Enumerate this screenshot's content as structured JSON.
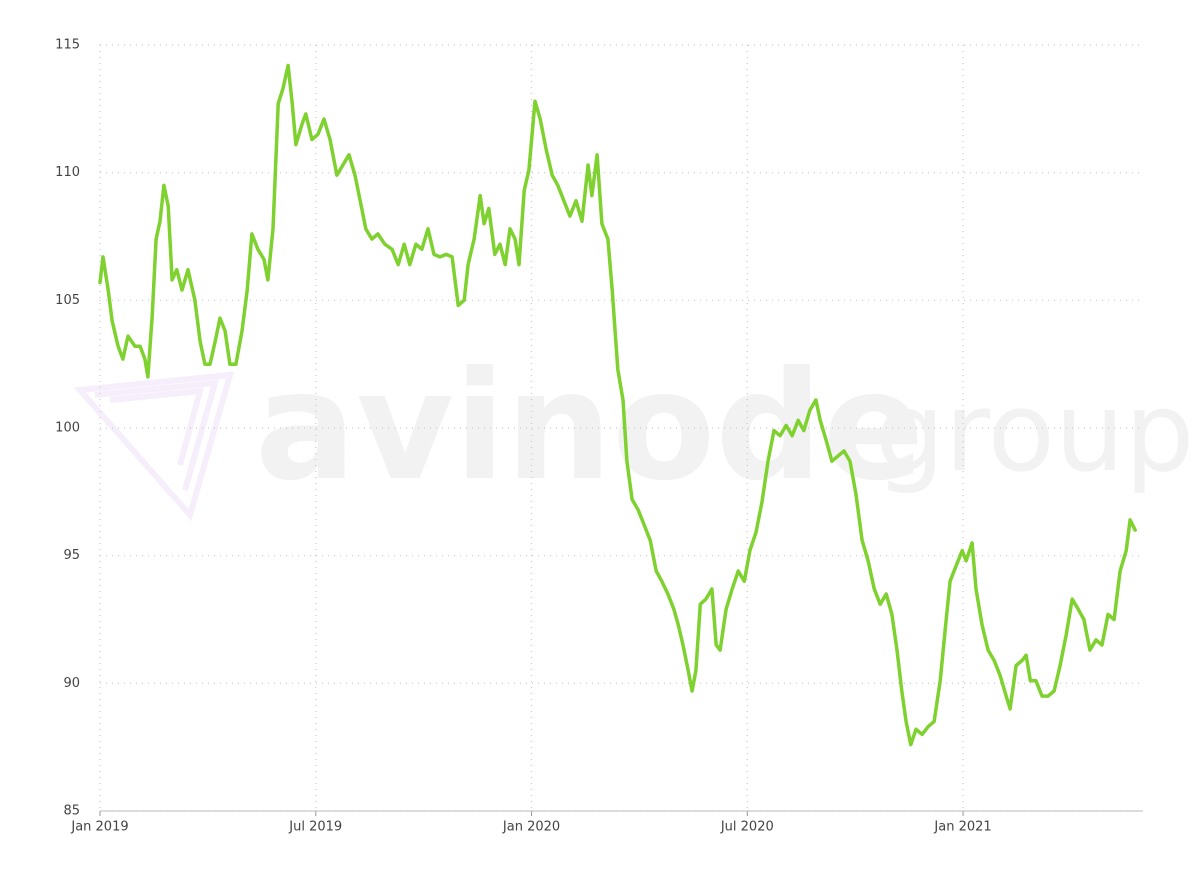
{
  "chart_data": {
    "type": "line",
    "watermark": {
      "brand": "avinode",
      "suffix": "group"
    },
    "xlim": [
      2019,
      2021.417
    ],
    "ylim": [
      85,
      115
    ],
    "xticks": [
      {
        "value": 2019,
        "label": "Jan 2019"
      },
      {
        "value": 2019.5,
        "label": "Jul 2019"
      },
      {
        "value": 2020,
        "label": "Jan 2020"
      },
      {
        "value": 2020.5,
        "label": "Jul 2020"
      },
      {
        "value": 2021,
        "label": "Jan 2021"
      }
    ],
    "yticks": [
      85,
      90,
      95,
      100,
      105,
      110,
      115
    ],
    "grid": true,
    "x": [
      2019.0,
      2019.007,
      2019.019,
      2019.028,
      2019.042,
      2019.053,
      2019.065,
      2019.081,
      2019.093,
      2019.104,
      2019.111,
      2019.121,
      2019.13,
      2019.139,
      2019.148,
      2019.158,
      2019.167,
      2019.178,
      2019.19,
      2019.204,
      2019.22,
      2019.232,
      2019.243,
      2019.255,
      2019.267,
      2019.278,
      2019.29,
      2019.301,
      2019.315,
      2019.329,
      2019.341,
      2019.352,
      2019.366,
      2019.38,
      2019.389,
      2019.401,
      2019.413,
      2019.424,
      2019.436,
      2019.445,
      2019.454,
      2019.468,
      2019.477,
      2019.491,
      2019.505,
      2019.519,
      2019.533,
      2019.549,
      2019.563,
      2019.577,
      2019.591,
      2019.603,
      2019.616,
      2019.63,
      2019.644,
      2019.66,
      2019.677,
      2019.691,
      2019.705,
      2019.718,
      2019.732,
      2019.746,
      2019.76,
      2019.774,
      2019.788,
      2019.802,
      2019.816,
      2019.83,
      2019.844,
      2019.853,
      2019.867,
      2019.881,
      2019.89,
      2019.901,
      2019.915,
      2019.927,
      2019.939,
      2019.95,
      2019.962,
      2019.971,
      2019.983,
      2019.994,
      2020.008,
      2020.02,
      2020.034,
      2020.048,
      2020.061,
      2020.075,
      2020.089,
      2020.103,
      2020.117,
      2020.131,
      2020.14,
      2020.152,
      2020.163,
      2020.177,
      2020.187,
      2020.2,
      2020.212,
      2020.221,
      2020.233,
      2020.247,
      2020.261,
      2020.275,
      2020.289,
      2020.302,
      2020.316,
      2020.33,
      2020.34,
      2020.351,
      2020.363,
      2020.372,
      2020.381,
      2020.391,
      2020.404,
      2020.418,
      2020.428,
      2020.437,
      2020.451,
      2020.465,
      2020.479,
      2020.493,
      2020.506,
      2020.52,
      2020.534,
      2020.548,
      2020.562,
      2020.576,
      2020.59,
      2020.604,
      2020.618,
      2020.631,
      2020.645,
      2020.659,
      2020.669,
      2020.683,
      2020.696,
      2020.71,
      2020.724,
      2020.738,
      2020.752,
      2020.766,
      2020.78,
      2020.794,
      2020.808,
      2020.822,
      2020.835,
      2020.847,
      2020.858,
      2020.868,
      2020.879,
      2020.891,
      2020.905,
      2020.919,
      2020.933,
      2020.947,
      2020.961,
      2020.97,
      2020.984,
      2020.998,
      2021.007,
      2021.021,
      2021.03,
      2021.044,
      2021.058,
      2021.072,
      2021.086,
      2021.1,
      2021.109,
      2021.123,
      2021.137,
      2021.146,
      2021.156,
      2021.169,
      2021.183,
      2021.197,
      2021.211,
      2021.225,
      2021.239,
      2021.253,
      2021.267,
      2021.28,
      2021.294,
      2021.308,
      2021.322,
      2021.336,
      2021.35,
      2021.364,
      2021.378,
      2021.387,
      2021.399
    ],
    "series": [
      {
        "color": "#7ed12e",
        "values": [
          105.7,
          106.7,
          105.4,
          104.2,
          103.2,
          102.7,
          103.6,
          103.2,
          103.2,
          102.7,
          102.0,
          104.4,
          107.4,
          108.1,
          109.5,
          108.7,
          105.8,
          106.2,
          105.4,
          106.2,
          105.0,
          103.4,
          102.5,
          102.5,
          103.4,
          104.3,
          103.8,
          102.5,
          102.5,
          103.8,
          105.4,
          107.6,
          107.0,
          106.6,
          105.8,
          107.8,
          112.7,
          113.3,
          114.2,
          112.8,
          111.1,
          111.9,
          112.3,
          111.3,
          111.5,
          112.1,
          111.3,
          109.9,
          110.3,
          110.7,
          109.9,
          108.9,
          107.8,
          107.4,
          107.6,
          107.2,
          107.0,
          106.4,
          107.2,
          106.4,
          107.2,
          107.0,
          107.8,
          106.8,
          106.7,
          106.8,
          106.7,
          104.8,
          105.0,
          106.4,
          107.4,
          109.1,
          108.0,
          108.6,
          106.8,
          107.2,
          106.4,
          107.8,
          107.4,
          106.4,
          109.3,
          110.1,
          112.8,
          112.1,
          110.9,
          109.9,
          109.5,
          108.9,
          108.3,
          108.9,
          108.1,
          110.3,
          109.1,
          110.7,
          108.0,
          107.4,
          105.4,
          102.3,
          101.1,
          98.7,
          97.2,
          96.8,
          96.2,
          95.6,
          94.4,
          94.0,
          93.5,
          92.9,
          92.3,
          91.5,
          90.5,
          89.7,
          90.5,
          93.1,
          93.3,
          93.7,
          91.5,
          91.3,
          92.9,
          93.7,
          94.4,
          94.0,
          95.2,
          95.9,
          97.1,
          98.7,
          99.9,
          99.7,
          100.1,
          99.7,
          100.3,
          99.9,
          100.7,
          101.1,
          100.3,
          99.5,
          98.7,
          98.9,
          99.1,
          98.7,
          97.4,
          95.6,
          94.8,
          93.7,
          93.1,
          93.5,
          92.7,
          91.3,
          89.7,
          88.5,
          87.6,
          88.2,
          88.0,
          88.3,
          88.5,
          90.1,
          92.5,
          94.0,
          94.6,
          95.2,
          94.8,
          95.5,
          93.7,
          92.3,
          91.3,
          90.9,
          90.3,
          89.5,
          89.0,
          90.7,
          90.9,
          91.1,
          90.1,
          90.1,
          89.5,
          89.5,
          89.7,
          90.7,
          91.9,
          93.3,
          92.9,
          92.5,
          91.3,
          91.7,
          91.5,
          92.7,
          92.5,
          94.4,
          95.2,
          96.4,
          96.0
        ]
      }
    ]
  }
}
